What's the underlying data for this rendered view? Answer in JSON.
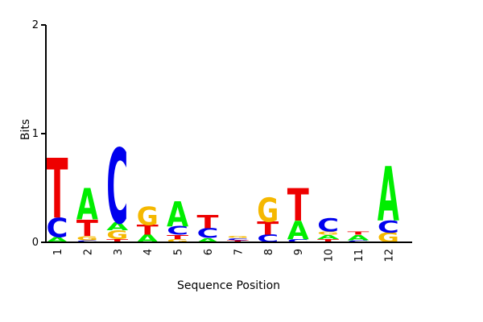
{
  "chart_data": {
    "type": "sequence-logo",
    "xlabel": "Sequence Position",
    "ylabel": "Bits",
    "ylim": [
      0,
      2
    ],
    "yticks": [
      "0",
      "1",
      "2"
    ],
    "positions": [
      "1",
      "2",
      "3",
      "4",
      "5",
      "6",
      "7",
      "8",
      "9",
      "10",
      "11",
      "12"
    ],
    "colors": {
      "A": "#00ee00",
      "C": "#0000ee",
      "G": "#f5b800",
      "T": "#ee0000"
    },
    "stacks": [
      [
        {
          "base": "A",
          "height": 0.05
        },
        {
          "base": "C",
          "height": 0.18
        },
        {
          "base": "T",
          "height": 0.55
        }
      ],
      [
        {
          "base": "C",
          "height": 0.02
        },
        {
          "base": "G",
          "height": 0.04
        },
        {
          "base": "T",
          "height": 0.15
        },
        {
          "base": "A",
          "height": 0.29
        }
      ],
      [
        {
          "base": "T",
          "height": 0.03
        },
        {
          "base": "G",
          "height": 0.08
        },
        {
          "base": "A",
          "height": 0.07
        },
        {
          "base": "C",
          "height": 0.69
        }
      ],
      [
        {
          "base": "A",
          "height": 0.07
        },
        {
          "base": "T",
          "height": 0.09
        },
        {
          "base": "G",
          "height": 0.17
        }
      ],
      [
        {
          "base": "G",
          "height": 0.03
        },
        {
          "base": "T",
          "height": 0.04
        },
        {
          "base": "C",
          "height": 0.08
        },
        {
          "base": "A",
          "height": 0.23
        }
      ],
      [
        {
          "base": "A",
          "height": 0.04
        },
        {
          "base": "C",
          "height": 0.09
        },
        {
          "base": "T",
          "height": 0.12
        }
      ],
      [
        {
          "base": "T",
          "height": 0.02
        },
        {
          "base": "C",
          "height": 0.02
        },
        {
          "base": "G",
          "height": 0.02
        }
      ],
      [
        {
          "base": "C",
          "height": 0.07
        },
        {
          "base": "T",
          "height": 0.12
        },
        {
          "base": "G",
          "height": 0.22
        }
      ],
      [
        {
          "base": "C",
          "height": 0.03
        },
        {
          "base": "A",
          "height": 0.17
        },
        {
          "base": "T",
          "height": 0.3
        }
      ],
      [
        {
          "base": "T",
          "height": 0.03
        },
        {
          "base": "A",
          "height": 0.04
        },
        {
          "base": "G",
          "height": 0.03
        },
        {
          "base": "C",
          "height": 0.12
        }
      ],
      [
        {
          "base": "C",
          "height": 0.02
        },
        {
          "base": "A",
          "height": 0.05
        },
        {
          "base": "T",
          "height": 0.03
        }
      ],
      [
        {
          "base": "G",
          "height": 0.09
        },
        {
          "base": "C",
          "height": 0.11
        },
        {
          "base": "A",
          "height": 0.5
        }
      ]
    ]
  }
}
